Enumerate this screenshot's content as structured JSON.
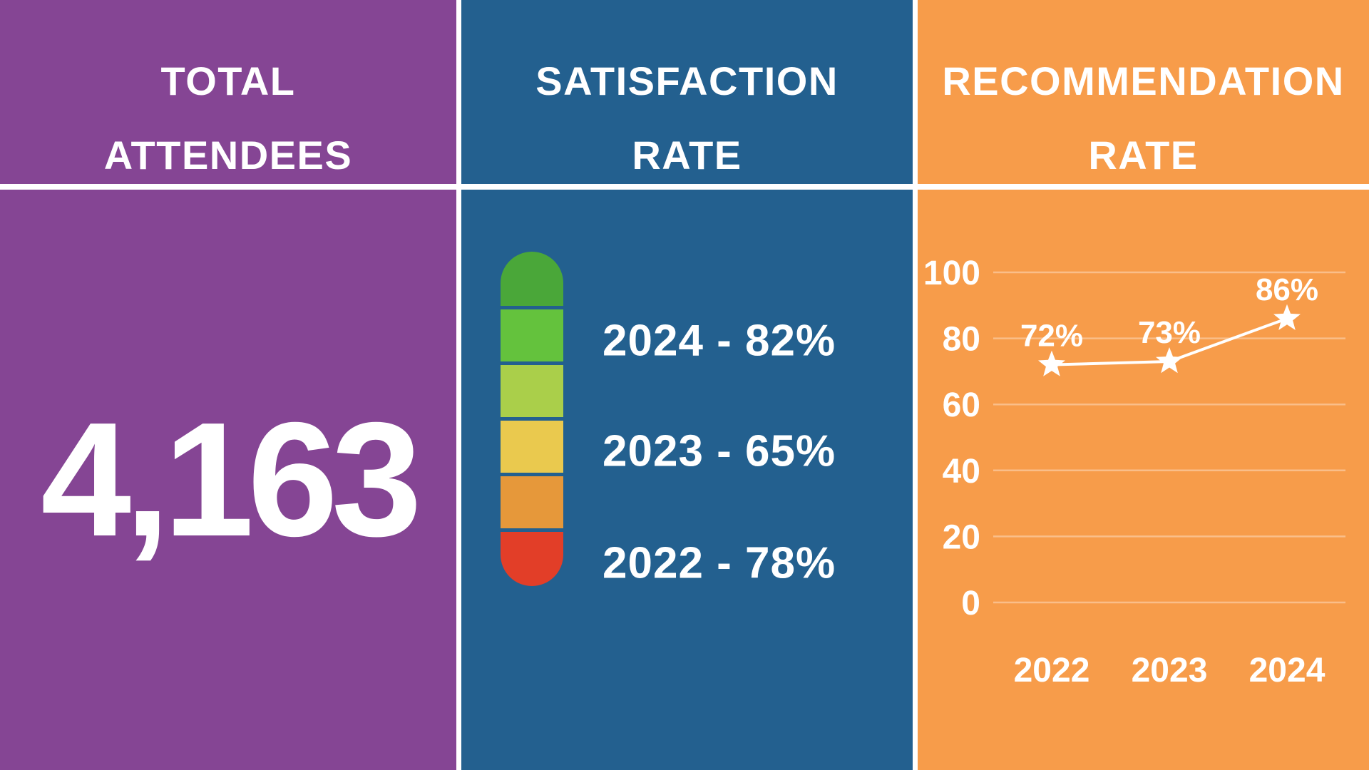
{
  "layout_colors": {
    "divider": "#ffffff",
    "purple": "#854594",
    "blue": "#23608f",
    "orange": "#f79c4a",
    "text": "#ffffff"
  },
  "attendees_panel": {
    "title_line1": "TOTAL",
    "title_line2": "ATTENDEES",
    "value": "4,163"
  },
  "satisfaction_panel": {
    "title_line1": "SATISFACTION",
    "title_line2": "RATE",
    "rows": [
      "2024 - 82%",
      "2023 - 65%",
      "2022 - 78%"
    ],
    "thermometer_colors": [
      "#4aa739",
      "#64c23d",
      "#aacf4a",
      "#eac94e",
      "#e6983a",
      "#e23e28"
    ]
  },
  "recommendation_panel": {
    "title_line1": "RECOMMENDATION",
    "title_line2": "RATE"
  },
  "chart_data": [
    {
      "type": "line",
      "title": "RECOMMENDATION RATE",
      "categories": [
        "2022",
        "2023",
        "2024"
      ],
      "series": [
        {
          "name": "Recommendation Rate",
          "values": [
            72,
            73,
            86
          ]
        }
      ],
      "data_labels": [
        "72%",
        "73%",
        "86%"
      ],
      "marker": "star",
      "marker_color": "#ffffff",
      "line_color": "#ffffff",
      "xlabel": "",
      "ylabel": "",
      "ylim": [
        0,
        100
      ],
      "yticks": [
        100,
        80,
        60,
        40,
        20,
        0
      ],
      "grid": true,
      "gridline_color": "rgba(255,255,255,0.35)",
      "legend": false
    },
    {
      "type": "table",
      "title": "SATISFACTION RATE",
      "categories": [
        "2024",
        "2023",
        "2022"
      ],
      "values": [
        82,
        65,
        78
      ],
      "unit": "%"
    },
    {
      "type": "table",
      "title": "TOTAL ATTENDEES",
      "categories": [
        "Total Attendees"
      ],
      "values": [
        4163
      ]
    }
  ]
}
